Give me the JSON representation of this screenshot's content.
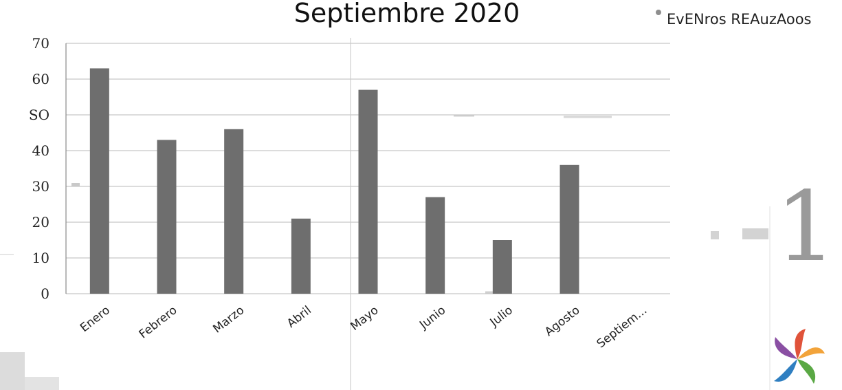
{
  "chart_data": {
    "type": "bar",
    "title": "Septiembre 2020",
    "categories": [
      "Enero",
      "Febrero",
      "Marzo",
      "Abril",
      "Mayo",
      "Junio",
      "Julio",
      "Agosto",
      "Septiem..."
    ],
    "series": [
      {
        "name": "EvENros REAuzAoos",
        "values": [
          63,
          43,
          46,
          21,
          57,
          27,
          15,
          36,
          0
        ]
      }
    ],
    "ylim": [
      0,
      70
    ],
    "yticks": [
      "0",
      "10",
      "20",
      "30",
      "40",
      "SO",
      "60",
      "70"
    ],
    "grid": true,
    "legend_position": "top-right",
    "colors": {
      "bar": "#6e6e6e",
      "grid": "#c8c8c8",
      "axis": "#8a8a8a",
      "logo": [
        "#e0533a",
        "#f2a33a",
        "#5aa844",
        "#2f7fc1",
        "#8a4fa3"
      ]
    },
    "decor": {
      "logo_icon": "flower-logo-icon",
      "scan_artifacts": "grey-smudge-marks"
    }
  }
}
